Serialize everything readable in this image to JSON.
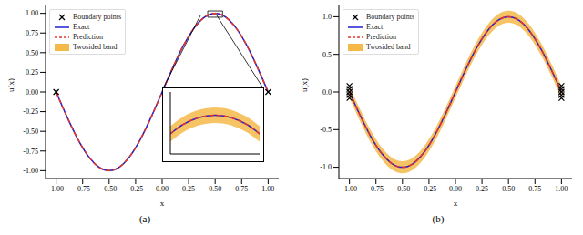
{
  "chart_data": [
    {
      "type": "line",
      "title": "(a)",
      "x_label": "x",
      "y_label": "u(x)",
      "legend": "upper left",
      "x": [
        -1.0,
        -0.9,
        -0.8,
        -0.7,
        -0.6,
        -0.5,
        -0.4,
        -0.3,
        -0.2,
        -0.1,
        0.0,
        0.1,
        0.2,
        0.3,
        0.4,
        0.5,
        0.6,
        0.7,
        0.8,
        0.9,
        1.0
      ],
      "series": [
        {
          "name": "Exact",
          "color": "#1f1fd0",
          "line_style": "solid",
          "values": [
            0.0,
            -0.309,
            -0.588,
            -0.809,
            -0.951,
            -1.0,
            -0.951,
            -0.809,
            -0.588,
            -0.309,
            0.0,
            0.309,
            0.588,
            0.809,
            0.951,
            1.0,
            0.951,
            0.809,
            0.588,
            0.309,
            0.0
          ]
        },
        {
          "name": "Prediction",
          "color": "#e8342b",
          "line_style": "dashed",
          "values": [
            0.0,
            -0.309,
            -0.588,
            -0.809,
            -0.951,
            -1.0,
            -0.951,
            -0.809,
            -0.588,
            -0.309,
            0.0,
            0.309,
            0.588,
            0.809,
            0.951,
            1.0,
            0.951,
            0.809,
            0.588,
            0.309,
            0.0
          ]
        }
      ],
      "band": {
        "name": "Twosided band",
        "color": "#f5b94a",
        "lower": [
          -0.01,
          -0.319,
          -0.598,
          -0.819,
          -0.961,
          -1.01,
          -0.961,
          -0.819,
          -0.598,
          -0.319,
          -0.01,
          0.299,
          0.578,
          0.799,
          0.941,
          0.99,
          0.941,
          0.799,
          0.578,
          0.299,
          -0.01
        ],
        "upper": [
          0.01,
          -0.299,
          -0.578,
          -0.799,
          -0.941,
          -0.99,
          -0.941,
          -0.799,
          -0.578,
          -0.299,
          0.01,
          0.319,
          0.598,
          0.819,
          0.961,
          1.01,
          0.961,
          0.819,
          0.598,
          0.319,
          0.01
        ]
      },
      "boundary": {
        "name": "Boundary points",
        "color": "#000000",
        "marker": "x",
        "x": [
          -1.0,
          1.0
        ],
        "y": [
          0.0,
          0.0
        ]
      },
      "xlim": [
        -1.1,
        1.1
      ],
      "xticks": [
        {
          "value": -1,
          "label": "-1.00"
        },
        {
          "value": -0.75,
          "label": "-0.75"
        },
        {
          "value": -0.5,
          "label": "-0.50"
        },
        {
          "value": -0.25,
          "label": "-0.25"
        },
        {
          "value": 0,
          "label": "0.00"
        },
        {
          "value": 0.25,
          "label": "0.25"
        },
        {
          "value": 0.5,
          "label": "0.50"
        },
        {
          "value": 0.75,
          "label": "0.75"
        },
        {
          "value": 1,
          "label": "1.00"
        }
      ],
      "ylim": [
        -1.1,
        1.1
      ],
      "yticks": [
        {
          "value": -1,
          "label": "-1.00"
        },
        {
          "value": -0.75,
          "label": "-0.75"
        },
        {
          "value": -0.5,
          "label": "-0.50"
        },
        {
          "value": -0.25,
          "label": "-0.25"
        },
        {
          "value": 0,
          "label": "0.00"
        },
        {
          "value": 0.25,
          "label": "0.25"
        },
        {
          "value": 0.5,
          "label": "0.50"
        },
        {
          "value": 0.75,
          "label": "0.75"
        },
        {
          "value": 1,
          "label": "1.00"
        }
      ]
    },
    {
      "type": "line",
      "tick_labels": false,
      "x": [
        0.43,
        0.45,
        0.5,
        0.55,
        0.57
      ],
      "series": [
        {
          "name": "Exact",
          "color": "#1f1fd0",
          "line_style": "solid",
          "values": [
            0.976,
            0.988,
            1.0,
            0.988,
            0.976
          ]
        },
        {
          "name": "Prediction",
          "color": "#e8342b",
          "line_style": "dashed",
          "values": [
            0.976,
            0.988,
            1.0,
            0.988,
            0.976
          ]
        }
      ],
      "band": {
        "name": "Twosided band",
        "color": "#f5b94a",
        "lower": [
          0.966,
          0.978,
          0.99,
          0.978,
          0.966
        ],
        "upper": [
          0.986,
          0.998,
          1.01,
          0.998,
          0.986
        ]
      },
      "xlim": [
        0.43,
        0.57
      ],
      "ylim": [
        0.95,
        1.03
      ]
    },
    {
      "type": "line",
      "title": "(b)",
      "x_label": "x",
      "y_label": "u(x)",
      "legend": "upper left",
      "x": [
        -1.0,
        -0.9,
        -0.8,
        -0.7,
        -0.6,
        -0.5,
        -0.4,
        -0.3,
        -0.2,
        -0.1,
        0.0,
        0.1,
        0.2,
        0.3,
        0.4,
        0.5,
        0.6,
        0.7,
        0.8,
        0.9,
        1.0
      ],
      "series": [
        {
          "name": "Exact",
          "color": "#1f1fd0",
          "line_style": "solid",
          "values": [
            0.0,
            -0.309,
            -0.588,
            -0.809,
            -0.951,
            -1.0,
            -0.951,
            -0.809,
            -0.588,
            -0.309,
            0.0,
            0.309,
            0.588,
            0.809,
            0.951,
            1.0,
            0.951,
            0.809,
            0.588,
            0.309,
            0.0
          ]
        },
        {
          "name": "Prediction",
          "color": "#e8342b",
          "line_style": "dashed",
          "values": [
            0.0,
            -0.309,
            -0.588,
            -0.809,
            -0.951,
            -1.0,
            -0.951,
            -0.809,
            -0.588,
            -0.309,
            0.0,
            0.309,
            0.588,
            0.809,
            0.951,
            1.0,
            0.951,
            0.809,
            0.588,
            0.309,
            0.0
          ]
        }
      ],
      "band": {
        "name": "Twosided band",
        "color": "#f5b94a",
        "lower": [
          -0.08,
          -0.389,
          -0.668,
          -0.889,
          -1.031,
          -1.08,
          -1.031,
          -0.889,
          -0.668,
          -0.389,
          -0.08,
          0.229,
          0.508,
          0.729,
          0.871,
          0.92,
          0.871,
          0.729,
          0.508,
          0.229,
          -0.08
        ],
        "upper": [
          0.08,
          -0.229,
          -0.508,
          -0.729,
          -0.871,
          -0.92,
          -0.871,
          -0.729,
          -0.508,
          -0.229,
          0.08,
          0.389,
          0.668,
          0.889,
          1.031,
          1.08,
          1.031,
          0.889,
          0.668,
          0.389,
          0.08
        ]
      },
      "boundary": {
        "name": "Boundary points",
        "color": "#000000",
        "marker": "x",
        "x": [
          -1.0,
          -1.0,
          -1.0,
          -1.0,
          -1.0,
          1.0,
          1.0,
          1.0,
          1.0,
          1.0
        ],
        "y": [
          -0.08,
          -0.04,
          0.0,
          0.04,
          0.08,
          -0.08,
          -0.04,
          0.0,
          0.04,
          0.08
        ]
      },
      "xlim": [
        -1.1,
        1.1
      ],
      "xticks": [
        {
          "value": -1,
          "label": "-1.00"
        },
        {
          "value": -0.75,
          "label": "-0.75"
        },
        {
          "value": -0.5,
          "label": "-0.50"
        },
        {
          "value": -0.25,
          "label": "-0.25"
        },
        {
          "value": 0,
          "label": "0.00"
        },
        {
          "value": 0.25,
          "label": "0.25"
        },
        {
          "value": 0.5,
          "label": "0.50"
        },
        {
          "value": 0.75,
          "label": "0.75"
        },
        {
          "value": 1,
          "label": "1.00"
        }
      ],
      "ylim": [
        -1.15,
        1.15
      ],
      "yticks": [
        {
          "value": -1,
          "label": "-1.0"
        },
        {
          "value": -0.5,
          "label": "-0.5"
        },
        {
          "value": 0,
          "label": "0.0"
        },
        {
          "value": 0.5,
          "label": "0.5"
        },
        {
          "value": 1,
          "label": "1.0"
        }
      ]
    }
  ]
}
